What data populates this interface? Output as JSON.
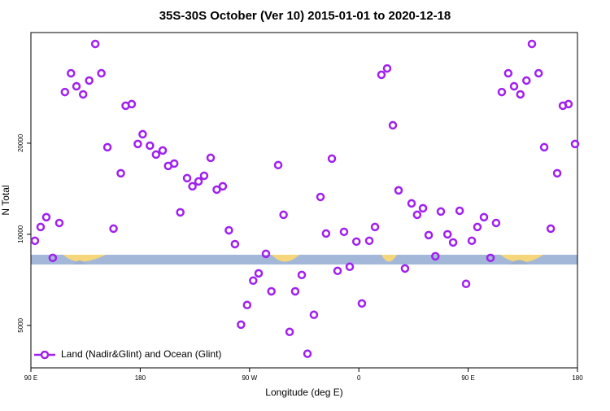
{
  "chart_data": {
    "type": "scatter",
    "title": "35S-30S October (Ver 10)   2015-01-01 to 2020-12-18",
    "x_label": "Longitude (deg E)",
    "y_label": "N Total",
    "y_scale": "log",
    "color": "#a020f0",
    "xlim": [
      90,
      540
    ],
    "xticks": [
      {
        "value": 90,
        "label": "90 E"
      },
      180,
      {
        "value": 270,
        "label": "90 W"
      },
      {
        "value": 360,
        "label": "0"
      },
      {
        "value": 450,
        "label": "90 E"
      },
      {
        "value": 540,
        "label": "180"
      }
    ],
    "ylim": [
      3620,
      46400
    ],
    "yticks": [
      5000,
      10000,
      20000
    ],
    "legend": "bottom-left",
    "series": [
      {
        "name": "Land (Nadir&Glint) and Ocean (Glint)",
        "color": "#a020f0",
        "x": [
          93.3,
          98,
          102.7,
          108,
          113.4,
          118,
          123,
          127.5,
          133,
          138,
          143,
          148,
          153,
          158,
          164,
          168,
          173,
          178,
          182,
          188,
          193,
          198.5,
          203,
          208,
          213,
          218.6,
          223,
          228,
          232.6,
          238,
          243,
          248,
          253,
          258,
          263,
          268,
          273,
          277.5,
          283.5,
          288,
          293.6,
          298,
          303,
          307.6,
          313,
          317.7,
          323,
          328.4,
          333,
          337.8,
          342.5,
          347.8,
          352.5,
          358,
          362.5,
          368.6,
          373.3,
          378.6,
          383.3,
          388,
          392.7,
          398,
          403.4,
          408,
          412.8,
          417.5,
          423,
          427.5,
          433,
          437.6,
          443,
          448.3,
          453,
          457.6,
          463,
          468.4,
          473,
          477.7,
          483,
          487.8,
          493,
          498,
          502.5,
          508,
          512.6,
          518,
          523.3,
          528,
          532.6,
          538
        ],
        "values": [
          9520,
          10570,
          11390,
          8360,
          10900,
          29510,
          34040,
          30830,
          28990,
          32210,
          42560,
          34040,
          19390,
          10440,
          15910,
          26590,
          26920,
          19880,
          21410,
          19630,
          18340,
          18920,
          16820,
          17130,
          11820,
          15330,
          14410,
          14950,
          15610,
          17890,
          14050,
          14410,
          10310,
          9280,
          5030,
          5840,
          7030,
          7430,
          8620,
          6480,
          16930,
          11600,
          4760,
          6480,
          7340,
          4030,
          5420,
          13290,
          10060,
          17780,
          7570,
          10190,
          7810,
          9460,
          5910,
          9520,
          10570,
          33650,
          35320,
          22920,
          13970,
          7710,
          12650,
          11600,
          12190,
          9940,
          8460,
          11890,
          10000,
          9400,
          11960,
          6860,
          9520,
          10570,
          11390,
          8360,
          10900,
          29510,
          34040,
          30830,
          28990,
          32210,
          42560,
          34040,
          19390,
          10440,
          15910,
          26590,
          26920,
          19880
        ]
      }
    ]
  }
}
